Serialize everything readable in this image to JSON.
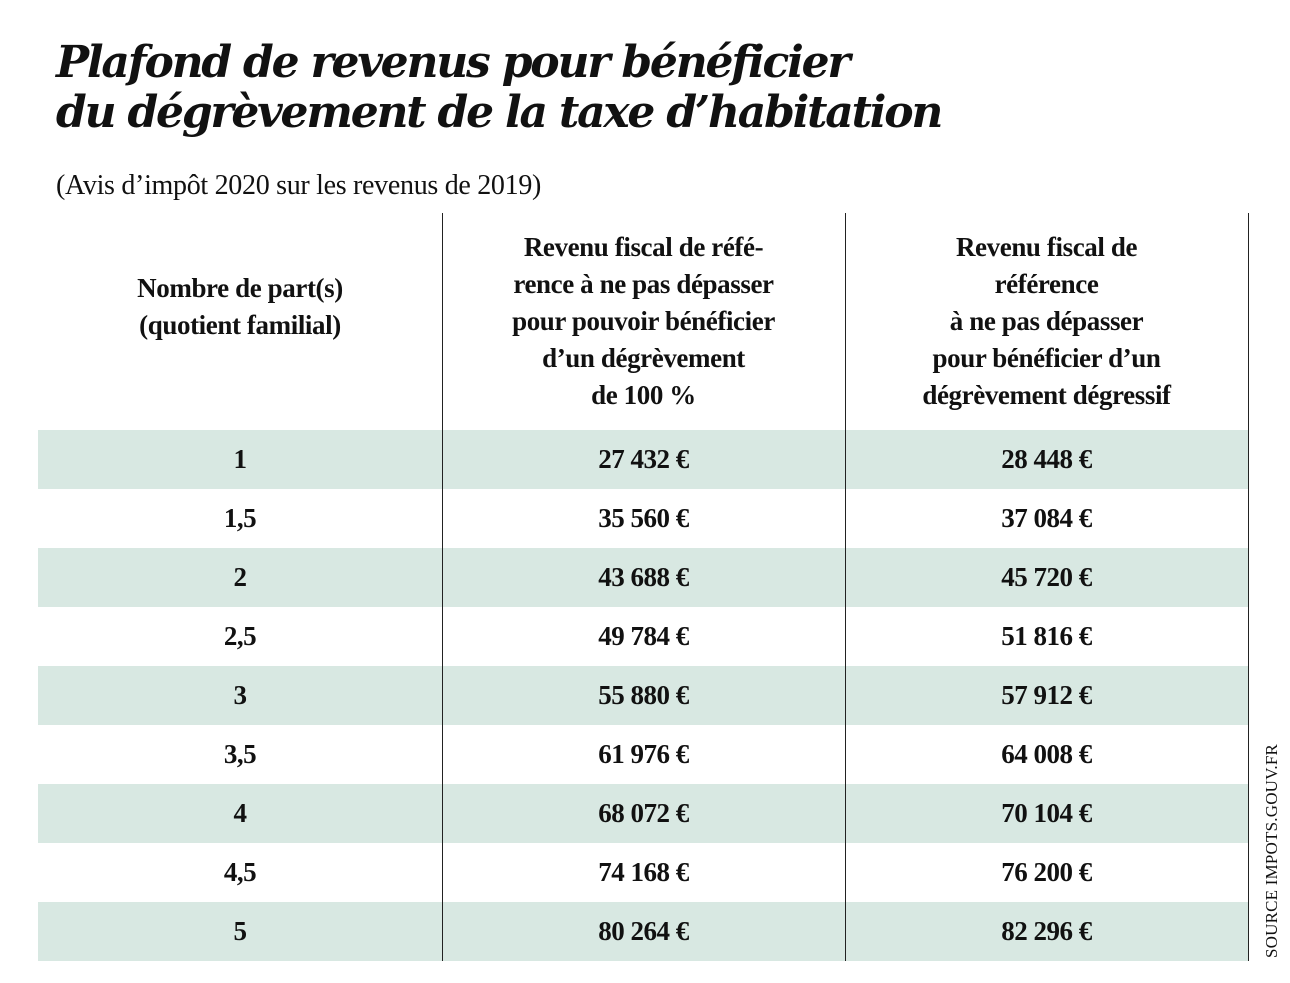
{
  "title": {
    "line1": "Plafond de revenus pour bénéficier",
    "line2": "du dégrèvement de la taxe d’habitation"
  },
  "subtitle": "(Avis d’impôt 2020 sur les revenus de 2019)",
  "table": {
    "headers": [
      [
        "Nombre de part(s)",
        "(quotient familial)"
      ],
      [
        "Revenu fiscal de réfé-",
        "rence à ne pas dépasser",
        "pour pouvoir bénéficier",
        "d’un dégrèvement",
        "de 100 %"
      ],
      [
        "Revenu fiscal de",
        "référence",
        "à ne pas dépasser",
        "pour bénéficier d’un",
        "dégrèvement dégressif"
      ]
    ],
    "rows": [
      [
        "1",
        "27 432 €",
        "28 448 €"
      ],
      [
        "1,5",
        "35 560 €",
        "37 084 €"
      ],
      [
        "2",
        "43 688 €",
        "45 720 €"
      ],
      [
        "2,5",
        "49 784 €",
        "51 816 €"
      ],
      [
        "3",
        "55 880 €",
        "57 912 €"
      ],
      [
        "3,5",
        "61 976 €",
        "64 008 €"
      ],
      [
        "4",
        "68 072 €",
        "70 104 €"
      ],
      [
        "4,5",
        "74 168 €",
        "76 200 €"
      ],
      [
        "5",
        "80 264 €",
        "82 296 €"
      ]
    ],
    "shade_color": "#d8e8e2"
  },
  "source": "SOURCE IMPOTS.GOUV.FR"
}
